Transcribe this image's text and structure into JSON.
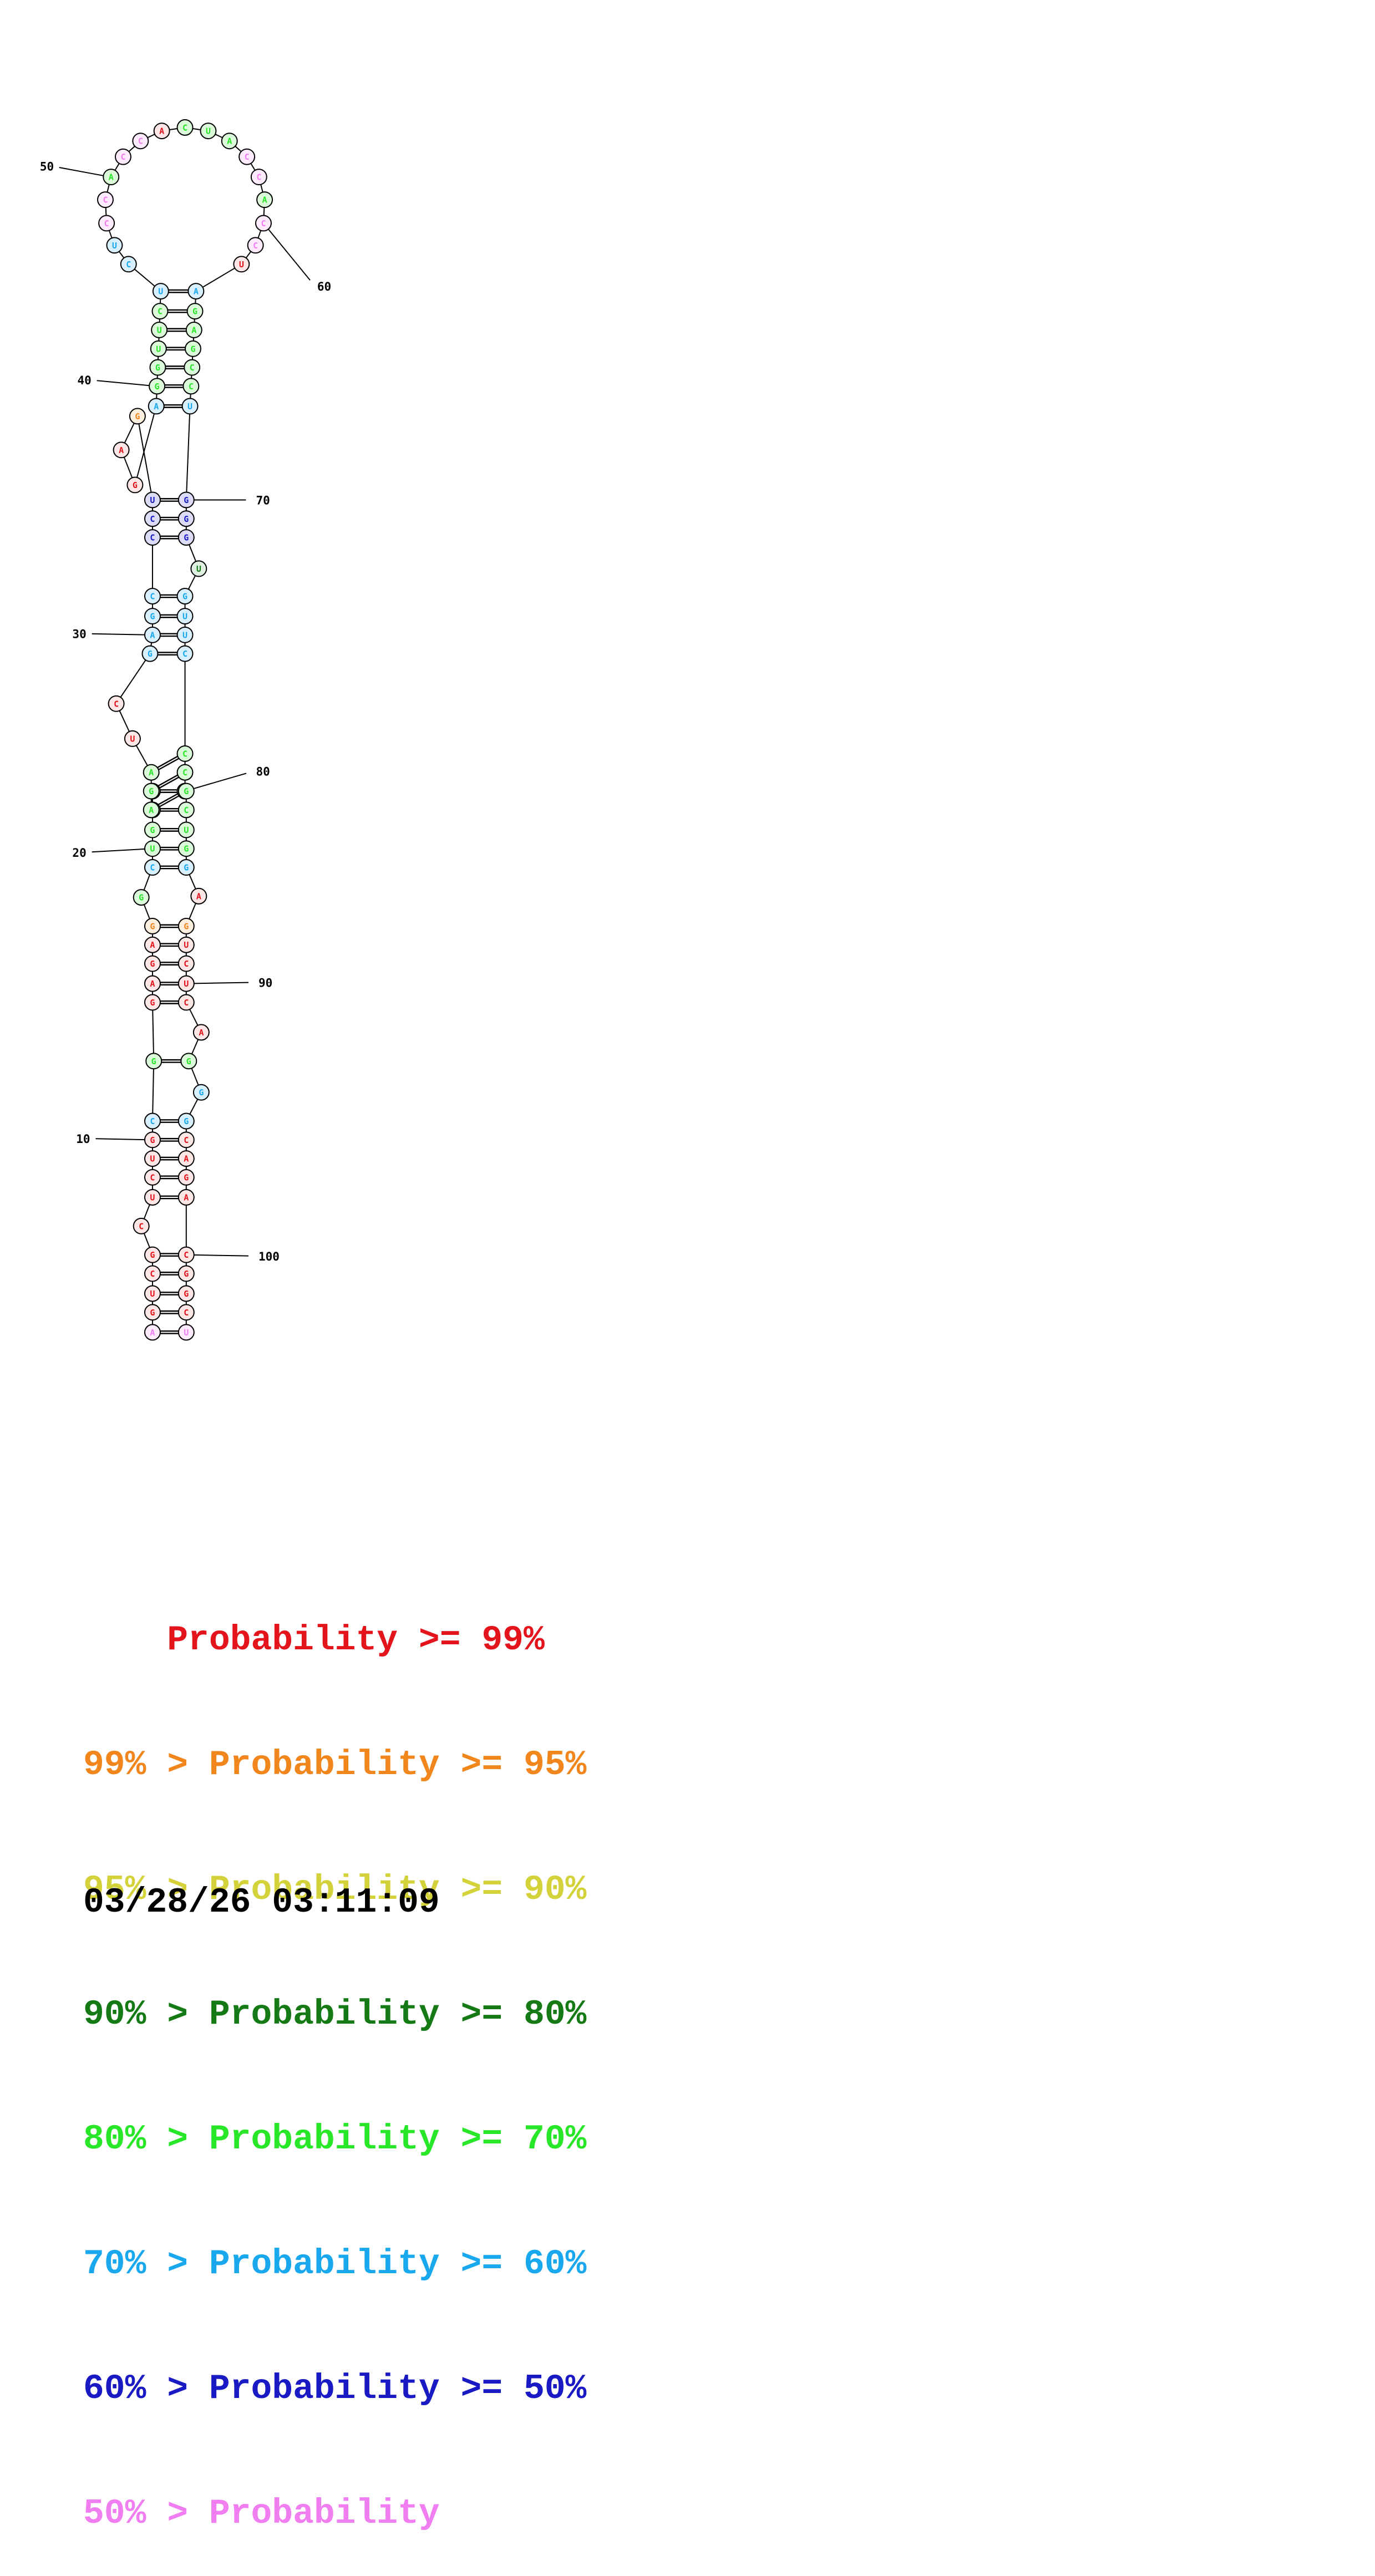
{
  "diagram": {
    "sequence": "AGUGCGUCUCGGCGAGAGGCUGGCGACGAUCCGACUCGCUGGGCACACCCAACAUCGCUGCCUGACUUCCGGGGUUGUGCCGUCGCUGGCCUCUAGAGGCAGACGCACU",
    "nucleotides": [
      {
        "i": 1,
        "b": "A",
        "c": "violet"
      },
      {
        "i": 2,
        "b": "G",
        "c": "red"
      },
      {
        "i": 3,
        "b": "U",
        "c": "red"
      },
      {
        "i": 4,
        "b": "C",
        "c": "red"
      },
      {
        "i": 5,
        "b": "G",
        "c": "red"
      },
      {
        "i": 6,
        "b": "C",
        "c": "red"
      },
      {
        "i": 7,
        "b": "U",
        "c": "red"
      },
      {
        "i": 8,
        "b": "C",
        "c": "red"
      },
      {
        "i": 9,
        "b": "U",
        "c": "red"
      },
      {
        "i": 10,
        "b": "G",
        "c": "red"
      },
      {
        "i": 11,
        "b": "C",
        "c": "sky"
      },
      {
        "i": 12,
        "b": "G",
        "c": "lime"
      },
      {
        "i": 13,
        "b": "G",
        "c": "red"
      },
      {
        "i": 14,
        "b": "A",
        "c": "red"
      },
      {
        "i": 15,
        "b": "G",
        "c": "red"
      },
      {
        "i": 16,
        "b": "A",
        "c": "red"
      },
      {
        "i": 17,
        "b": "G",
        "c": "orange"
      },
      {
        "i": 18,
        "b": "G",
        "c": "lime"
      },
      {
        "i": 19,
        "b": "C",
        "c": "sky"
      },
      {
        "i": 20,
        "b": "U",
        "c": "lime"
      },
      {
        "i": 21,
        "b": "G",
        "c": "lime"
      },
      {
        "i": 22,
        "b": "G",
        "c": "lime"
      },
      {
        "i": 23,
        "b": "C",
        "c": "lime"
      },
      {
        "i": 24,
        "b": "A",
        "c": "lime"
      },
      {
        "i": 25,
        "b": "G",
        "c": "lime"
      },
      {
        "i": 26,
        "b": "A",
        "c": "lime"
      },
      {
        "i": 27,
        "b": "U",
        "c": "red"
      },
      {
        "i": 28,
        "b": "C",
        "c": "red"
      },
      {
        "i": 29,
        "b": "G",
        "c": "sky"
      },
      {
        "i": 30,
        "b": "A",
        "c": "sky"
      },
      {
        "i": 31,
        "b": "G",
        "c": "sky"
      },
      {
        "i": 32,
        "b": "C",
        "c": "sky"
      },
      {
        "i": 33,
        "b": "C",
        "c": "blue"
      },
      {
        "i": 34,
        "b": "C",
        "c": "blue"
      },
      {
        "i": 35,
        "b": "U",
        "c": "blue"
      },
      {
        "i": 36,
        "b": "G",
        "c": "orange"
      },
      {
        "i": 37,
        "b": "A",
        "c": "red"
      },
      {
        "i": 38,
        "b": "G",
        "c": "red"
      },
      {
        "i": 39,
        "b": "A",
        "c": "sky"
      },
      {
        "i": 40,
        "b": "G",
        "c": "lime"
      },
      {
        "i": 41,
        "b": "G",
        "c": "lime"
      },
      {
        "i": 42,
        "b": "U",
        "c": "lime"
      },
      {
        "i": 43,
        "b": "U",
        "c": "lime"
      },
      {
        "i": 44,
        "b": "C",
        "c": "lime"
      },
      {
        "i": 45,
        "b": "U",
        "c": "sky"
      },
      {
        "i": 46,
        "b": "C",
        "c": "sky"
      },
      {
        "i": 47,
        "b": "U",
        "c": "sky"
      },
      {
        "i": 48,
        "b": "C",
        "c": "violet"
      },
      {
        "i": 49,
        "b": "C",
        "c": "violet"
      },
      {
        "i": 50,
        "b": "A",
        "c": "lime"
      },
      {
        "i": 51,
        "b": "C",
        "c": "violet"
      },
      {
        "i": 52,
        "b": "C",
        "c": "violet"
      },
      {
        "i": 53,
        "b": "A",
        "c": "red"
      },
      {
        "i": 54,
        "b": "C",
        "c": "lime"
      },
      {
        "i": 55,
        "b": "U",
        "c": "lime"
      },
      {
        "i": 56,
        "b": "A",
        "c": "lime"
      },
      {
        "i": 57,
        "b": "C",
        "c": "violet"
      },
      {
        "i": 58,
        "b": "C",
        "c": "violet"
      },
      {
        "i": 59,
        "b": "A",
        "c": "lime"
      },
      {
        "i": 60,
        "b": "C",
        "c": "violet"
      },
      {
        "i": 61,
        "b": "C",
        "c": "violet"
      },
      {
        "i": 62,
        "b": "U",
        "c": "red"
      },
      {
        "i": 63,
        "b": "A",
        "c": "sky"
      },
      {
        "i": 64,
        "b": "G",
        "c": "lime"
      },
      {
        "i": 65,
        "b": "A",
        "c": "lime"
      },
      {
        "i": 66,
        "b": "G",
        "c": "lime"
      },
      {
        "i": 67,
        "b": "C",
        "c": "lime"
      },
      {
        "i": 68,
        "b": "C",
        "c": "lime"
      },
      {
        "i": 69,
        "b": "U",
        "c": "sky"
      },
      {
        "i": 70,
        "b": "G",
        "c": "blue"
      },
      {
        "i": 71,
        "b": "G",
        "c": "blue"
      },
      {
        "i": 72,
        "b": "G",
        "c": "blue"
      },
      {
        "i": 73,
        "b": "U",
        "c": "dgreen"
      },
      {
        "i": 74,
        "b": "G",
        "c": "sky"
      },
      {
        "i": 75,
        "b": "U",
        "c": "sky"
      },
      {
        "i": 76,
        "b": "U",
        "c": "sky"
      },
      {
        "i": 77,
        "b": "C",
        "c": "sky"
      },
      {
        "i": 78,
        "b": "C",
        "c": "lime"
      },
      {
        "i": 79,
        "b": "C",
        "c": "lime"
      },
      {
        "i": 80,
        "b": "U",
        "c": "lime"
      },
      {
        "i": 81,
        "b": "G",
        "c": "lime"
      },
      {
        "i": 82,
        "b": "C",
        "c": "lime"
      },
      {
        "i": 83,
        "b": "U",
        "c": "lime"
      },
      {
        "i": 84,
        "b": "G",
        "c": "lime"
      },
      {
        "i": 85,
        "b": "G",
        "c": "sky"
      },
      {
        "i": 86,
        "b": "A",
        "c": "red"
      },
      {
        "i": 87,
        "b": "G",
        "c": "orange"
      },
      {
        "i": 88,
        "b": "U",
        "c": "red"
      },
      {
        "i": 89,
        "b": "C",
        "c": "red"
      },
      {
        "i": 90,
        "b": "U",
        "c": "red"
      },
      {
        "i": 91,
        "b": "C",
        "c": "red"
      },
      {
        "i": 92,
        "b": "A",
        "c": "red"
      },
      {
        "i": 93,
        "b": "G",
        "c": "lime"
      },
      {
        "i": 94,
        "b": "G",
        "c": "sky"
      },
      {
        "i": 95,
        "b": "G",
        "c": "sky"
      },
      {
        "i": 96,
        "b": "C",
        "c": "red"
      },
      {
        "i": 97,
        "b": "A",
        "c": "red"
      },
      {
        "i": 98,
        "b": "G",
        "c": "red"
      },
      {
        "i": 99,
        "b": "A",
        "c": "red"
      },
      {
        "i": 100,
        "b": "C",
        "c": "red"
      },
      {
        "i": 101,
        "b": "G",
        "c": "red"
      },
      {
        "i": 102,
        "b": "G",
        "c": "red"
      },
      {
        "i": 103,
        "b": "C",
        "c": "red"
      },
      {
        "i": 104,
        "b": "U",
        "c": "violet"
      }
    ],
    "pairs": [
      [
        1,
        104
      ],
      [
        2,
        103
      ],
      [
        3,
        102
      ],
      [
        4,
        101
      ],
      [
        5,
        100
      ],
      [
        7,
        99
      ],
      [
        8,
        98
      ],
      [
        9,
        97
      ],
      [
        10,
        96
      ],
      [
        11,
        95
      ],
      [
        12,
        93
      ],
      [
        13,
        91
      ],
      [
        14,
        90
      ],
      [
        15,
        89
      ],
      [
        16,
        88
      ],
      [
        17,
        87
      ],
      [
        19,
        85
      ],
      [
        20,
        84
      ],
      [
        21,
        83
      ],
      [
        22,
        82
      ],
      [
        23,
        81
      ],
      [
        24,
        80
      ],
      [
        25,
        79
      ],
      [
        26,
        78
      ],
      [
        29,
        77
      ],
      [
        30,
        76
      ],
      [
        31,
        75
      ],
      [
        32,
        74
      ],
      [
        33,
        72
      ],
      [
        34,
        71
      ],
      [
        35,
        70
      ],
      [
        39,
        69
      ],
      [
        40,
        68
      ],
      [
        41,
        67
      ],
      [
        42,
        66
      ],
      [
        43,
        65
      ],
      [
        44,
        64
      ],
      [
        45,
        63
      ]
    ],
    "tick_labels": [
      {
        "text": "10",
        "at": 10
      },
      {
        "text": "20",
        "at": 20
      },
      {
        "text": "30",
        "at": 30
      },
      {
        "text": "40",
        "at": 40
      },
      {
        "text": "50",
        "at": 50
      },
      {
        "text": "60",
        "at": 60
      },
      {
        "text": "70",
        "at": 70
      },
      {
        "text": "80",
        "at": 80
      },
      {
        "text": "90",
        "at": 90
      },
      {
        "text": "100",
        "at": 100
      }
    ]
  },
  "colors": {
    "red": "#e3141b",
    "orange": "#f0861c",
    "yellow": "#d4d23a",
    "dgreen": "#157a15",
    "lime": "#28e628",
    "sky": "#19a8ee",
    "blue": "#1a1ac4",
    "violet": "#f07ef0",
    "fill": {
      "red": "#fde6e6",
      "orange": "#fdeedd",
      "yellow": "#fbfbdc",
      "dgreen": "#e0f0e0",
      "lime": "#dafada",
      "sky": "#d8f0fd",
      "blue": "#dcdcf6",
      "violet": "#fdeafd"
    }
  },
  "legend": {
    "rows": [
      {
        "prefix": "    ",
        "prob": "Probability",
        "suffix": " >= 99%",
        "color": "#e3141b"
      },
      {
        "prefix": "99% > ",
        "prob": "Probability",
        "suffix": " >= 95%",
        "color": "#f0861c"
      },
      {
        "prefix": "95% > ",
        "prob": "Probability",
        "suffix": " >= 90%",
        "color": "#d4d23a"
      },
      {
        "prefix": "90% > ",
        "prob": "Probability",
        "suffix": " >= 80%",
        "color": "#157a15"
      },
      {
        "prefix": "80% > ",
        "prob": "Probability",
        "suffix": " >= 70%",
        "color": "#28e628"
      },
      {
        "prefix": "70% > ",
        "prob": "Probability",
        "suffix": " >= 60%",
        "color": "#19a8ee"
      },
      {
        "prefix": "60% > ",
        "prob": "Probability",
        "suffix": " >= 50%",
        "color": "#1a1ac4"
      },
      {
        "prefix": "50% > ",
        "prob": "Probability",
        "suffix": "",
        "color": "#f07ef0"
      }
    ],
    "timestamp": "03/28/26 03:11:09"
  }
}
